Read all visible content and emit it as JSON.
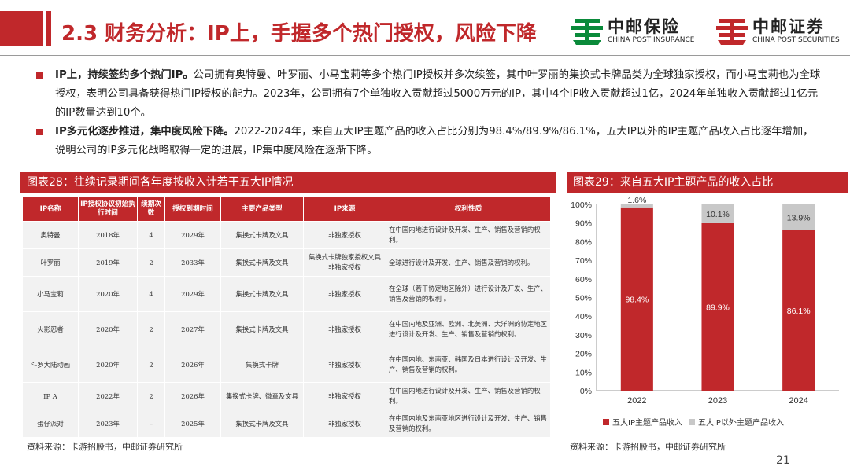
{
  "header": {
    "title": "2.3 财务分析：IP上，手握多个热门授权，风险下降",
    "logo_insurance_cn": "中邮保险",
    "logo_insurance_en": "CHINA POST INSURANCE",
    "logo_securities_cn": "中邮证券",
    "logo_securities_en": "CHINA POST SECURITIES"
  },
  "bullets": [
    {
      "lead": "IP上，持续签约多个热门IP。",
      "text": "公司拥有奥特曼、叶罗丽、小马宝莉等多个热门IP授权并多次续签，其中叶罗丽的集换式卡牌品类为全球独家授权，而小马宝莉也为全球授权，表明公司具备获得热门IP授权的能力。2023年，公司拥有7个单独收入贡献超过5000万元的IP，其中4个IP收入贡献超过1亿，2024年单独收入贡献超过1亿元的IP数量达到10个。"
    },
    {
      "lead": "IP多元化逐步推进，集中度风险下降。",
      "text": "2022-2024年，来自五大IP主题产品的收入占比分别为98.4%/89.9%/86.1%，五大IP以外的IP主题产品收入占比逐年增加，说明公司的IP多元化战略取得一定的进展，IP集中度风险在逐渐下降。"
    }
  ],
  "table": {
    "caption": "图表28：往续记录期间各年度按收入计若干五大IP情况",
    "headers": [
      "IP名称",
      "IP授权协议初始执行时间",
      "续期次数",
      "授权到期时间",
      "主要产品类型",
      "IP来源",
      "权利性质"
    ],
    "rows": [
      [
        "奥特曼",
        "2018年",
        "4",
        "2029年",
        "集换式卡牌及文具",
        "非独家授权",
        "在中国内地进行设计及开发、生产、销售及营销的权利。"
      ],
      [
        "叶罗丽",
        "2019年",
        "2",
        "2033年",
        "集换式卡牌及文具",
        "集换式卡牌独家授权文具非独家授权",
        "全球进行设计及开发、生产、销售及营销的权利。"
      ],
      [
        "小马宝莉",
        "2020年",
        "4",
        "2029年",
        "集换式卡牌及文具",
        "非独家授权",
        "在全球（若干协定地区除外）进行设计及开发、生产、销售及营销的权利 。"
      ],
      [
        "火影忍者",
        "2020年",
        "2",
        "2027年",
        "集换式卡牌及文具",
        "非独家授权",
        "在中国内地及亚洲、欧洲、北美洲、大洋洲的协定地区进行设计及开发、生产、销售及营销的权利。"
      ],
      [
        "斗罗大陆动画",
        "2020年",
        "2",
        "2026年",
        "集换式卡牌",
        "非独家授权",
        "在中国内地、东南亚、韩国及日本进行设计及开发、生产、销售及营销的权利。"
      ],
      [
        "IP A",
        "2022年",
        "2",
        "2026年",
        "集换式卡牌、徽章及文具",
        "非独家授权",
        "在中国内地进行设计及开发、生产、销售及营销的权利。"
      ],
      [
        "蛋仔派对",
        "2023年",
        "–",
        "2025年",
        "集换式卡牌及文具",
        "非独家授权",
        "在中国内地及东南亚地区进行设计及开发、生产、销售及营销的权利。"
      ]
    ],
    "source": "资料来源：卡游招股书，中邮证券研究所"
  },
  "chart_panel": {
    "caption": "图表29：来自五大IP主题产品的收入占比",
    "source": "资料来源：卡游招股书，中邮证券研究所"
  },
  "chart_data": {
    "type": "bar",
    "stacked": true,
    "categories": [
      "2022",
      "2023",
      "2024"
    ],
    "series": [
      {
        "name": "五大IP主题产品收入",
        "values": [
          98.4,
          89.9,
          86.1
        ],
        "labels": [
          "98.4%",
          "89.9%",
          "86.1%"
        ],
        "color": "#c0282b"
      },
      {
        "name": "五大IP以外主题产品收入",
        "values": [
          1.6,
          10.1,
          13.9
        ],
        "labels": [
          "1.6%",
          "10.1%",
          "13.9%"
        ],
        "color": "#c8c8c8"
      }
    ],
    "yticks": [
      "0%",
      "10%",
      "20%",
      "30%",
      "40%",
      "50%",
      "60%",
      "70%",
      "80%",
      "90%",
      "100%"
    ],
    "ylim": [
      0,
      100
    ],
    "legend_position": "bottom",
    "grid": false
  },
  "page_number": "21"
}
